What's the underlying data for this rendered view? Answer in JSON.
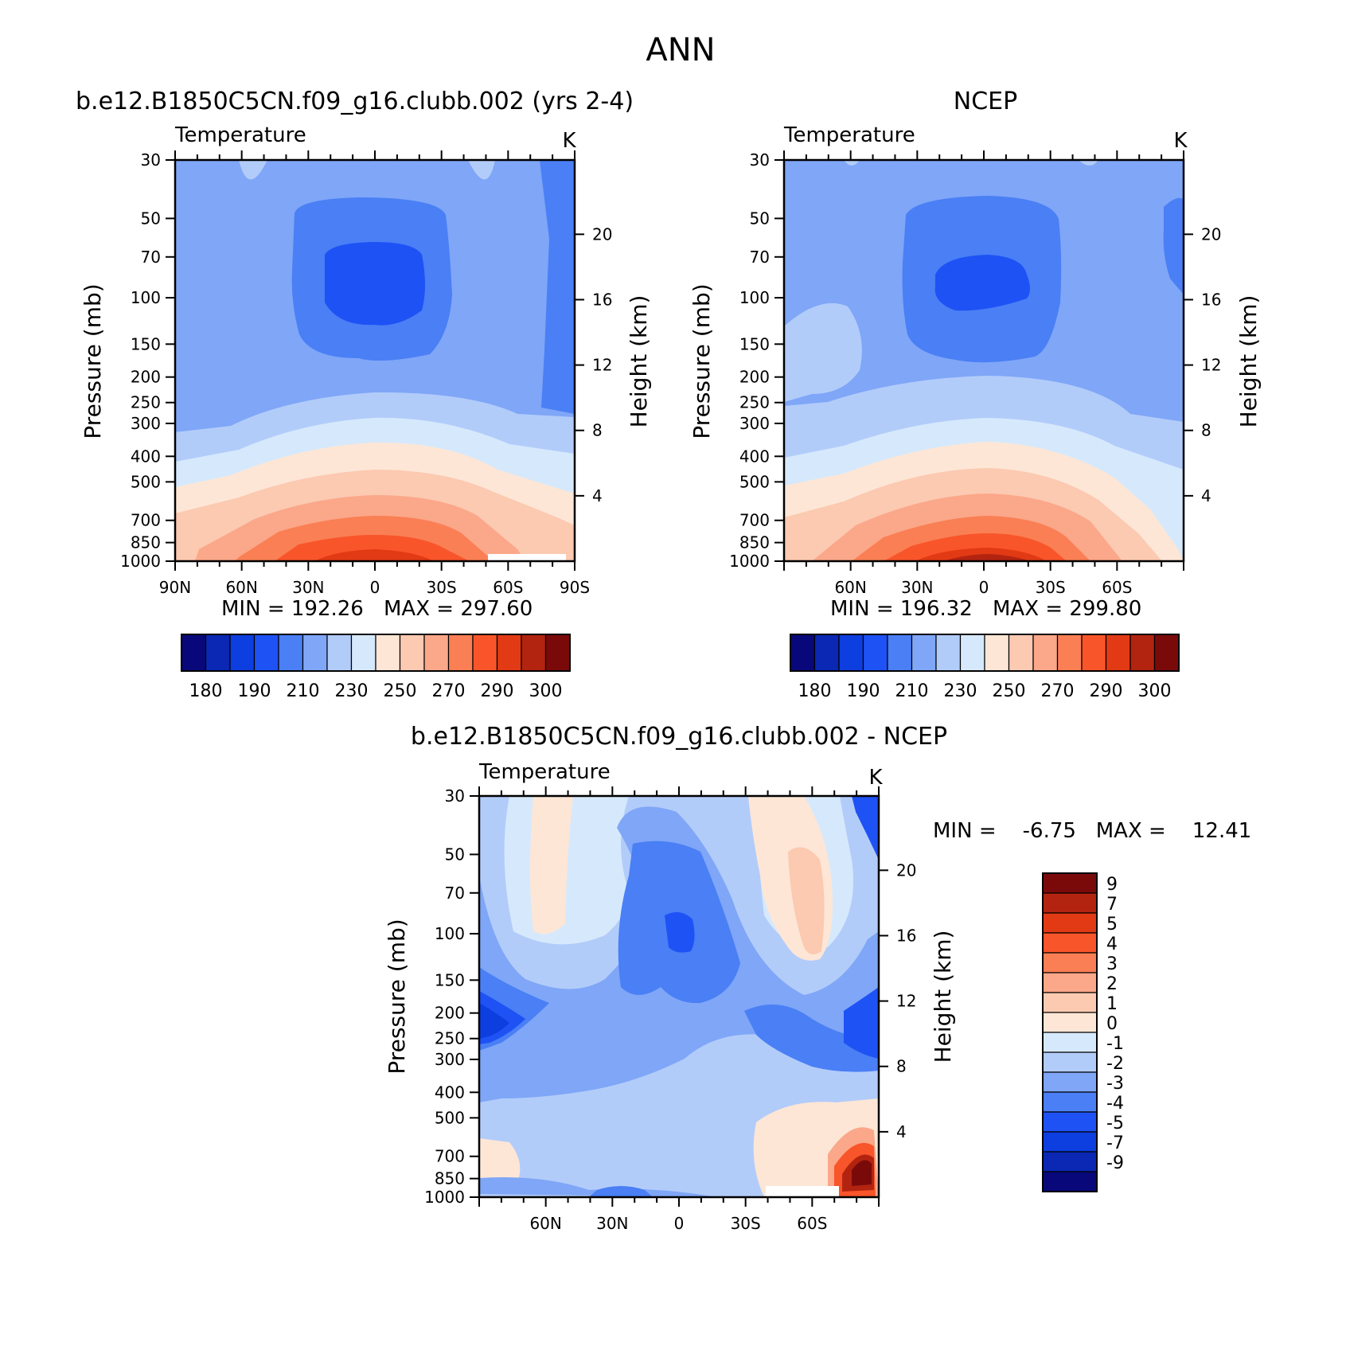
{
  "page_title": "ANN",
  "chart_data": [
    {
      "type": "contour",
      "id": "model",
      "title": "b.e12.B1850C5CN.f09_g16.clubb.002 (yrs 2-4)",
      "left_label": "Temperature",
      "units": "K",
      "ylabel_left": "Pressure  (mb)",
      "ylabel_right": "Height  (km)",
      "pressure_ticks": [
        30,
        50,
        70,
        100,
        150,
        200,
        250,
        300,
        400,
        500,
        700,
        850,
        1000
      ],
      "height_ticks": [
        20,
        16,
        12,
        8,
        4
      ],
      "x_ticks": [
        "90N",
        "60N",
        "30N",
        "0",
        "30S",
        "60S",
        "90S"
      ],
      "xlim": [
        90,
        -90
      ],
      "ylim_mb": [
        1000,
        30
      ],
      "min_label": "MIN  =  192.26",
      "max_label": "MAX  =  297.60",
      "min": 192.26,
      "max": 297.6,
      "colorbar_labels": [
        "180",
        "190",
        "210",
        "230",
        "250",
        "270",
        "290",
        "300"
      ]
    },
    {
      "type": "contour",
      "id": "obs",
      "title": "NCEP",
      "left_label": "Temperature",
      "units": "K",
      "ylabel_left": "Pressure  (mb)",
      "ylabel_right": "Height  (km)",
      "pressure_ticks": [
        30,
        50,
        70,
        100,
        150,
        200,
        250,
        300,
        400,
        500,
        700,
        850,
        1000
      ],
      "height_ticks": [
        20,
        16,
        12,
        8,
        4
      ],
      "x_ticks": [
        "60N",
        "30N",
        "0",
        "30S",
        "60S"
      ],
      "xlim": [
        90,
        -90
      ],
      "ylim_mb": [
        1000,
        30
      ],
      "min_label": "MIN  =  196.32",
      "max_label": "MAX  =  299.80",
      "min": 196.32,
      "max": 299.8,
      "colorbar_labels": [
        "180",
        "190",
        "210",
        "230",
        "250",
        "270",
        "290",
        "300"
      ]
    },
    {
      "type": "contour",
      "id": "diff",
      "title": "b.e12.B1850C5CN.f09_g16.clubb.002 - NCEP",
      "left_label": "Temperature",
      "units": "K",
      "ylabel_left": "Pressure  (mb)",
      "ylabel_right": "Height  (km)",
      "pressure_ticks": [
        30,
        50,
        70,
        100,
        150,
        200,
        250,
        300,
        400,
        500,
        700,
        850,
        1000
      ],
      "height_ticks": [
        20,
        16,
        12,
        8,
        4
      ],
      "x_ticks": [
        "60N",
        "30N",
        "0",
        "30S",
        "60S"
      ],
      "xlim": [
        90,
        -90
      ],
      "ylim_mb": [
        1000,
        30
      ],
      "minmax_label": "MIN =    -6.75   MAX =    12.41",
      "min": -6.75,
      "max": 12.41,
      "colorbar_labels": [
        "9",
        "7",
        "5",
        "4",
        "3",
        "2",
        "1",
        "0",
        "-1",
        "-2",
        "-3",
        "-4",
        "-5",
        "-7",
        "-9"
      ]
    }
  ],
  "palettes": {
    "temperature": [
      "#08087a",
      "#0a28b4",
      "#0d3ee0",
      "#1e52f5",
      "#4a7ff5",
      "#7fa6f7",
      "#b2ccfa",
      "#d6e9fc",
      "#fde6d6",
      "#fcc9b1",
      "#fba789",
      "#fa7f54",
      "#f9552a",
      "#e23a14",
      "#b32410",
      "#7a0a0a"
    ],
    "difference": [
      "#7a0a0a",
      "#b32410",
      "#e23a14",
      "#f9552a",
      "#fa7f54",
      "#fba789",
      "#fcc9b1",
      "#fde6d6",
      "#d6e9fc",
      "#b2ccfa",
      "#7fa6f7",
      "#4a7ff5",
      "#1e52f5",
      "#0d3ee0",
      "#0a28b4",
      "#08087a"
    ]
  }
}
